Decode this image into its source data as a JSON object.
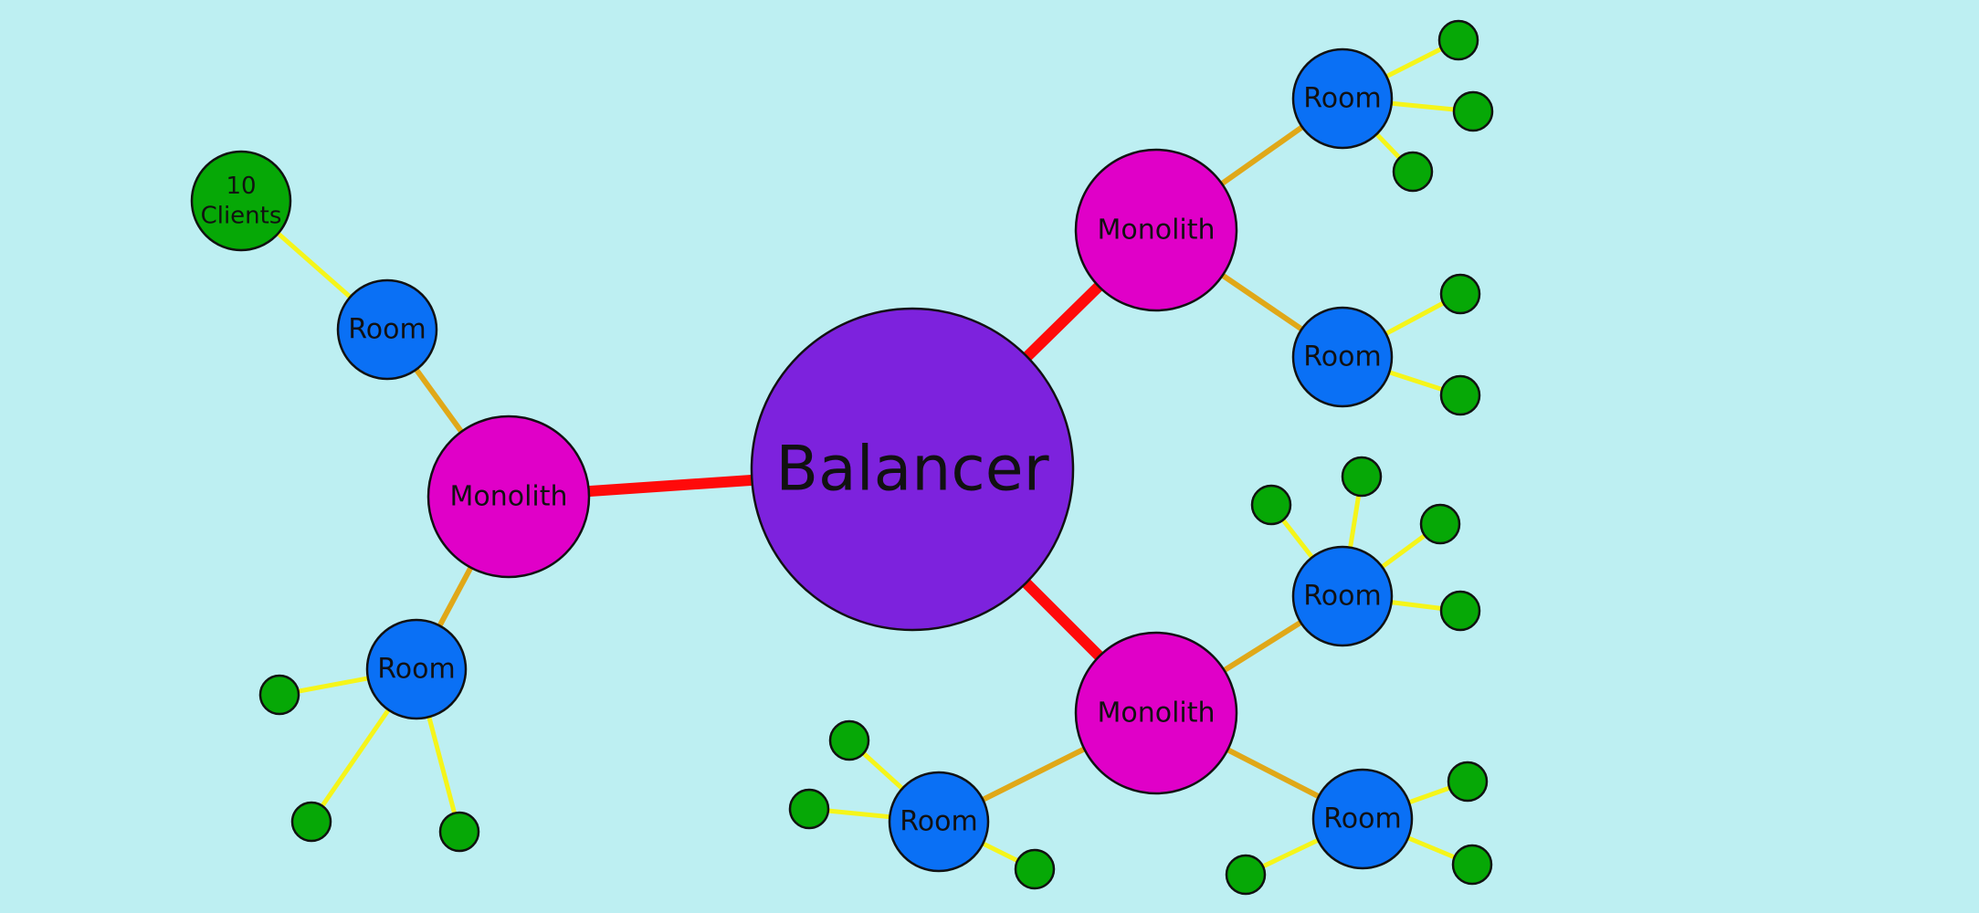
{
  "diagram": {
    "background": "#bdeff2",
    "balancer": {
      "label": "Balancer",
      "color": "#7d22dd"
    },
    "monolith_label": "Monolith",
    "room_label": "Room",
    "clients_label": [
      "10",
      "Clients"
    ],
    "colors": {
      "monolith": "#e000c8",
      "room": "#0a70f5",
      "client": "#06a806",
      "balancer_link": "#ff0a0a",
      "monolith_link": "#e0a818",
      "client_link": "#f5f51a",
      "outline": "#111111"
    }
  }
}
